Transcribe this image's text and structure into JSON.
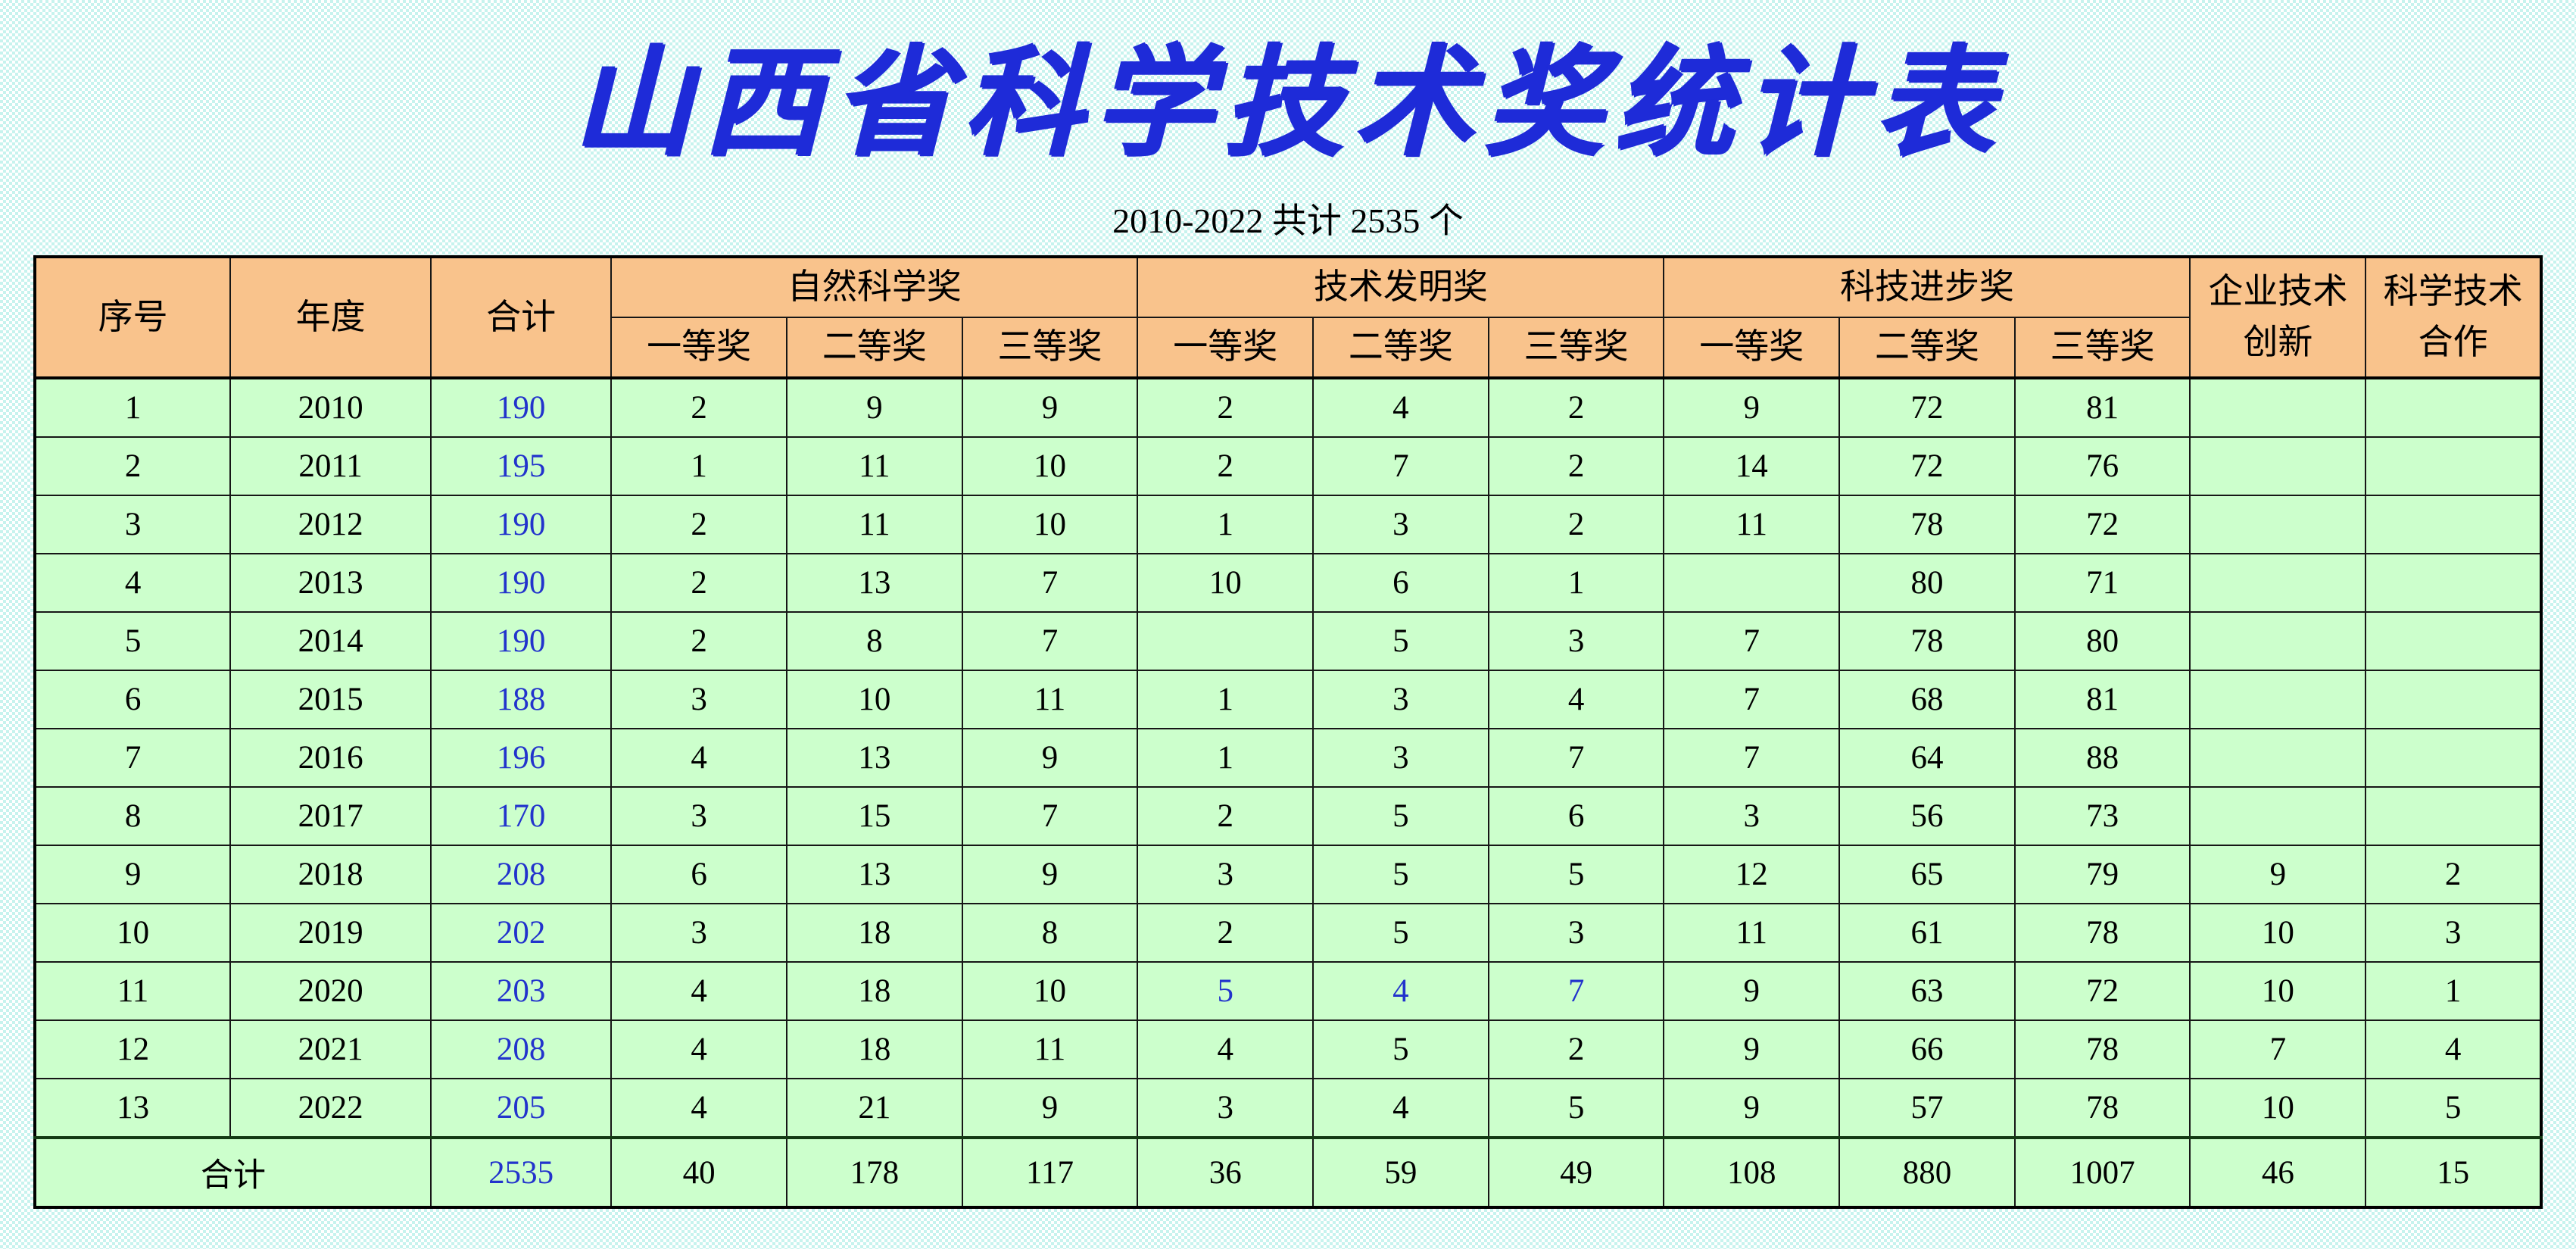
{
  "page": {
    "title": "山西省科学技术奖统计表",
    "subtitle": "2010-2022 共计 2535 个"
  },
  "colors": {
    "title_blue": "#1e2bd8",
    "accent_blue": "#2233cc",
    "header_bg": "#f9c38c",
    "cell_bg": "#ccffcc",
    "background_checker": "#c7f3ee",
    "border": "#000000"
  },
  "table": {
    "header": {
      "serial": "序号",
      "year": "年度",
      "total": "合计",
      "group_natural_science": "自然科学奖",
      "group_tech_invention": "技术发明奖",
      "group_sci_tech_progress": "科技进步奖",
      "enterprise_innovation_line1": "企业技术",
      "enterprise_innovation_line2": "创新",
      "cooperation_line1": "科学技术",
      "cooperation_line2": "合作",
      "grade_labels": [
        "一等奖",
        "二等奖",
        "三等奖"
      ]
    },
    "rows": [
      {
        "no": "1",
        "year": "2010",
        "total": "190",
        "cells": [
          "2",
          "9",
          "9",
          "2",
          "4",
          "2",
          "9",
          "72",
          "81",
          "",
          ""
        ]
      },
      {
        "no": "2",
        "year": "2011",
        "total": "195",
        "cells": [
          "1",
          "11",
          "10",
          "2",
          "7",
          "2",
          "14",
          "72",
          "76",
          "",
          ""
        ]
      },
      {
        "no": "3",
        "year": "2012",
        "total": "190",
        "cells": [
          "2",
          "11",
          "10",
          "1",
          "3",
          "2",
          "11",
          "78",
          "72",
          "",
          ""
        ]
      },
      {
        "no": "4",
        "year": "2013",
        "total": "190",
        "cells": [
          "2",
          "13",
          "7",
          "10",
          "6",
          "1",
          "",
          "80",
          "71",
          "",
          ""
        ]
      },
      {
        "no": "5",
        "year": "2014",
        "total": "190",
        "cells": [
          "2",
          "8",
          "7",
          "",
          "5",
          "3",
          "7",
          "78",
          "80",
          "",
          ""
        ]
      },
      {
        "no": "6",
        "year": "2015",
        "total": "188",
        "cells": [
          "3",
          "10",
          "11",
          "1",
          "3",
          "4",
          "7",
          "68",
          "81",
          "",
          ""
        ]
      },
      {
        "no": "7",
        "year": "2016",
        "total": "196",
        "cells": [
          "4",
          "13",
          "9",
          "1",
          "3",
          "7",
          "7",
          "64",
          "88",
          "",
          ""
        ]
      },
      {
        "no": "8",
        "year": "2017",
        "total": "170",
        "cells": [
          "3",
          "15",
          "7",
          "2",
          "5",
          "6",
          "3",
          "56",
          "73",
          "",
          ""
        ]
      },
      {
        "no": "9",
        "year": "2018",
        "total": "208",
        "cells": [
          "6",
          "13",
          "9",
          "3",
          "5",
          "5",
          "12",
          "65",
          "79",
          "9",
          "2"
        ]
      },
      {
        "no": "10",
        "year": "2019",
        "total": "202",
        "cells": [
          "3",
          "18",
          "8",
          "2",
          "5",
          "3",
          "11",
          "61",
          "78",
          "10",
          "3"
        ]
      },
      {
        "no": "11",
        "year": "2020",
        "total": "203",
        "cells": [
          "4",
          "18",
          "10",
          "5",
          "4",
          "7",
          "9",
          "63",
          "72",
          "10",
          "1"
        ],
        "blue_cells": [
          3,
          4,
          5
        ]
      },
      {
        "no": "12",
        "year": "2021",
        "total": "208",
        "cells": [
          "4",
          "18",
          "11",
          "4",
          "5",
          "2",
          "9",
          "66",
          "78",
          "7",
          "4"
        ]
      },
      {
        "no": "13",
        "year": "2022",
        "total": "205",
        "cells": [
          "4",
          "21",
          "9",
          "3",
          "4",
          "5",
          "9",
          "57",
          "78",
          "10",
          "5"
        ]
      }
    ],
    "total": {
      "label": "合计",
      "total": "2535",
      "cells": [
        "40",
        "178",
        "117",
        "36",
        "59",
        "49",
        "108",
        "880",
        "1007",
        "46",
        "15"
      ]
    }
  }
}
